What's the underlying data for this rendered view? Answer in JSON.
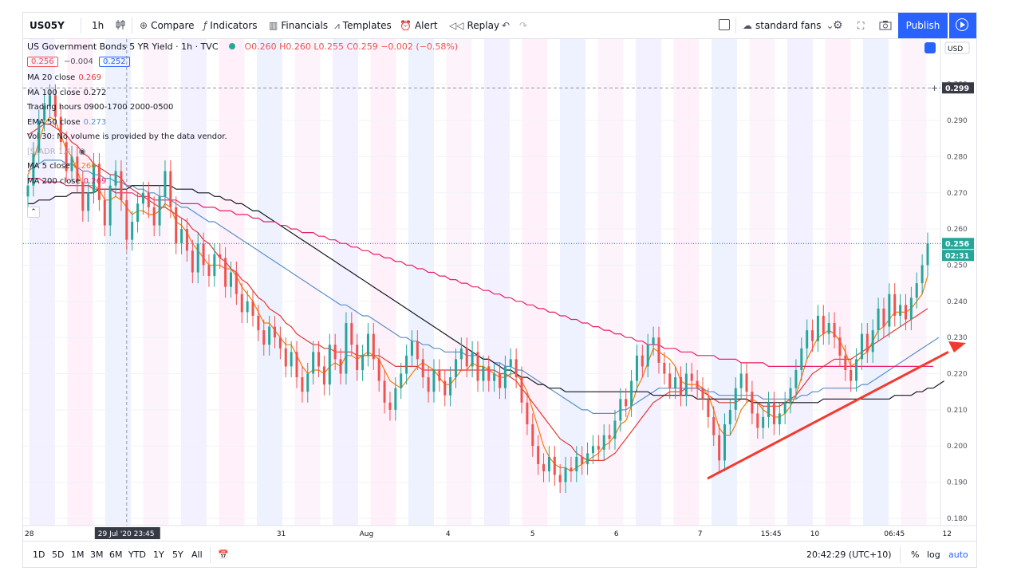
{
  "toolbar": {
    "symbol": "US05Y",
    "interval": "1h",
    "compare_label": "Compare",
    "indicators_label": "Indicators",
    "financials_label": "Financials",
    "templates_label": "Templates",
    "alert_label": "Alert",
    "replay_label": "Replay",
    "layout_name": "standard fans",
    "publish_label": "Publish"
  },
  "legend": {
    "title": "US Government Bonds 5 YR Yield · 1h · TVC",
    "ohlc": "O0.260 H0.260 L0.255 C0.259 −0.002 (−0.58%)",
    "bid": "0.256",
    "spread": "−0.004",
    "ask": "0.252",
    "rows": [
      {
        "label": "MA 20 close",
        "value": "0.269",
        "color": "#e53935"
      },
      {
        "label": "MA 100 close",
        "value": "0.272",
        "color": "#131722"
      },
      {
        "label": "Trading hours 0900-1700 2000-0500",
        "value": "",
        "color": "#131722"
      },
      {
        "label": "EMA 50 close",
        "value": "0.273",
        "color": "#5b8fc8"
      },
      {
        "label": "Vol 30: No volume is provided by the data vendor.",
        "value": "",
        "color": "#131722"
      },
      {
        "label": "[S]ADR 1.4",
        "value": "",
        "color": "#b2b5be"
      },
      {
        "label": "MA 5 close",
        "value": "0.266",
        "color": "#f57c00"
      },
      {
        "label": "MA 200 close",
        "value": "0.269",
        "color": "#e91e63"
      }
    ]
  },
  "price_scale": {
    "currency": "USD",
    "crosshair_price": "0.299",
    "last_price": "0.256",
    "countdown": "02:31"
  },
  "time_scale": {
    "crosshair_time": "29 Jul '20  23:45"
  },
  "bottom": {
    "ranges": [
      "1D",
      "5D",
      "1M",
      "3M",
      "6M",
      "YTD",
      "1Y",
      "5Y",
      "All"
    ],
    "clock": "20:42:29 (UTC+10)",
    "percent_label": "%",
    "log_label": "log",
    "auto_label": "auto"
  },
  "colors": {
    "up": "#26a69a",
    "down": "#ef5350",
    "accent": "#2962ff",
    "arrow": "#f23a2d"
  },
  "chart_data": {
    "type": "candlestick",
    "title": "US Government Bonds 5 YR Yield · 1h · TVC",
    "y_ticks": [
      0.18,
      0.19,
      0.2,
      0.21,
      0.22,
      0.23,
      0.24,
      0.25,
      0.26,
      0.27,
      0.28,
      0.29,
      0.3
    ],
    "x_ticks": [
      "28",
      "29",
      "29 Jul '20",
      "31",
      "Aug",
      "4",
      "5",
      "6",
      "7",
      "15:45",
      "10",
      "06:45",
      "12"
    ],
    "ylim": [
      0.178,
      0.3125
    ],
    "candles": [
      0.272,
      0.281,
      0.29,
      0.294,
      0.297,
      0.291,
      0.284,
      0.276,
      0.28,
      0.273,
      0.265,
      0.27,
      0.278,
      0.268,
      0.261,
      0.272,
      0.276,
      0.268,
      0.257,
      0.262,
      0.267,
      0.27,
      0.266,
      0.261,
      0.269,
      0.276,
      0.266,
      0.256,
      0.26,
      0.254,
      0.248,
      0.256,
      0.25,
      0.247,
      0.253,
      0.252,
      0.244,
      0.248,
      0.242,
      0.237,
      0.24,
      0.236,
      0.232,
      0.228,
      0.233,
      0.23,
      0.227,
      0.222,
      0.226,
      0.219,
      0.215,
      0.22,
      0.226,
      0.222,
      0.217,
      0.228,
      0.224,
      0.22,
      0.234,
      0.228,
      0.221,
      0.225,
      0.231,
      0.224,
      0.218,
      0.212,
      0.21,
      0.216,
      0.22,
      0.225,
      0.229,
      0.224,
      0.219,
      0.215,
      0.221,
      0.218,
      0.214,
      0.219,
      0.224,
      0.227,
      0.222,
      0.226,
      0.218,
      0.222,
      0.218,
      0.22,
      0.216,
      0.222,
      0.224,
      0.219,
      0.212,
      0.206,
      0.2,
      0.195,
      0.193,
      0.197,
      0.192,
      0.19,
      0.194,
      0.193,
      0.197,
      0.195,
      0.198,
      0.2,
      0.199,
      0.203,
      0.202,
      0.207,
      0.213,
      0.211,
      0.218,
      0.225,
      0.222,
      0.228,
      0.23,
      0.223,
      0.22,
      0.216,
      0.219,
      0.214,
      0.22,
      0.218,
      0.216,
      0.213,
      0.208,
      0.203,
      0.196,
      0.206,
      0.21,
      0.216,
      0.22,
      0.215,
      0.209,
      0.205,
      0.208,
      0.212,
      0.206,
      0.209,
      0.212,
      0.216,
      0.221,
      0.227,
      0.232,
      0.229,
      0.236,
      0.231,
      0.234,
      0.23,
      0.225,
      0.221,
      0.218,
      0.224,
      0.231,
      0.226,
      0.232,
      0.238,
      0.233,
      0.242,
      0.236,
      0.239,
      0.235,
      0.241,
      0.245,
      0.25,
      0.256
    ],
    "series": [
      {
        "name": "MA 5 close",
        "color": "#f57c00",
        "values": [
          0.275,
          0.279,
          0.284,
          0.289,
          0.291,
          0.29,
          0.286,
          0.282,
          0.28,
          0.276,
          0.272,
          0.272,
          0.272,
          0.271,
          0.268,
          0.268,
          0.269,
          0.268,
          0.266,
          0.264,
          0.265,
          0.265,
          0.264,
          0.264,
          0.265,
          0.267,
          0.266,
          0.262,
          0.261,
          0.259,
          0.256,
          0.254,
          0.252,
          0.25,
          0.25,
          0.25,
          0.249,
          0.249,
          0.247,
          0.244,
          0.242,
          0.24,
          0.237,
          0.234,
          0.234,
          0.232,
          0.23,
          0.228,
          0.228,
          0.225,
          0.222,
          0.22,
          0.221,
          0.221,
          0.22,
          0.222,
          0.223,
          0.222,
          0.225,
          0.225,
          0.224,
          0.225,
          0.226,
          0.225,
          0.224,
          0.221,
          0.218,
          0.217,
          0.216,
          0.218,
          0.22,
          0.222,
          0.223,
          0.222,
          0.221,
          0.219,
          0.217,
          0.217,
          0.219,
          0.221,
          0.221,
          0.223,
          0.222,
          0.222,
          0.221,
          0.22,
          0.219,
          0.219,
          0.22,
          0.22,
          0.218,
          0.215,
          0.21,
          0.205,
          0.2,
          0.197,
          0.195,
          0.194,
          0.194,
          0.193,
          0.194,
          0.195,
          0.196,
          0.197,
          0.198,
          0.2,
          0.201,
          0.203,
          0.206,
          0.207,
          0.211,
          0.216,
          0.219,
          0.223,
          0.227,
          0.226,
          0.225,
          0.224,
          0.222,
          0.218,
          0.217,
          0.217,
          0.217,
          0.216,
          0.214,
          0.21,
          0.205,
          0.203,
          0.203,
          0.206,
          0.21,
          0.212,
          0.213,
          0.212,
          0.21,
          0.209,
          0.208,
          0.208,
          0.209,
          0.211,
          0.214,
          0.219,
          0.224,
          0.227,
          0.23,
          0.231,
          0.232,
          0.231,
          0.229,
          0.226,
          0.222,
          0.223,
          0.225,
          0.226,
          0.229,
          0.232,
          0.233,
          0.235,
          0.237,
          0.237,
          0.237,
          0.238,
          0.24,
          0.242,
          0.247
        ]
      },
      {
        "name": "MA 20 close",
        "color": "#e53935",
        "values": [
          0.286,
          0.287,
          0.288,
          0.289,
          0.289,
          0.288,
          0.287,
          0.286,
          0.284,
          0.283,
          0.281,
          0.28,
          0.278,
          0.277,
          0.276,
          0.275,
          0.275,
          0.274,
          0.272,
          0.271,
          0.27,
          0.269,
          0.268,
          0.267,
          0.266,
          0.266,
          0.265,
          0.264,
          0.263,
          0.262,
          0.26,
          0.259,
          0.257,
          0.256,
          0.254,
          0.252,
          0.251,
          0.249,
          0.248,
          0.246,
          0.245,
          0.243,
          0.241,
          0.24,
          0.238,
          0.237,
          0.236,
          0.234,
          0.233,
          0.231,
          0.23,
          0.229,
          0.228,
          0.228,
          0.227,
          0.227,
          0.226,
          0.226,
          0.226,
          0.226,
          0.225,
          0.225,
          0.225,
          0.225,
          0.225,
          0.224,
          0.223,
          0.222,
          0.222,
          0.222,
          0.222,
          0.222,
          0.221,
          0.221,
          0.221,
          0.221,
          0.221,
          0.221,
          0.221,
          0.221,
          0.221,
          0.221,
          0.221,
          0.221,
          0.221,
          0.221,
          0.22,
          0.22,
          0.219,
          0.218,
          0.216,
          0.214,
          0.212,
          0.21,
          0.208,
          0.206,
          0.204,
          0.202,
          0.201,
          0.2,
          0.198,
          0.197,
          0.196,
          0.196,
          0.196,
          0.196,
          0.197,
          0.198,
          0.2,
          0.202,
          0.204,
          0.206,
          0.208,
          0.21,
          0.212,
          0.213,
          0.214,
          0.215,
          0.215,
          0.215,
          0.216,
          0.216,
          0.216,
          0.215,
          0.214,
          0.213,
          0.212,
          0.212,
          0.212,
          0.212,
          0.213,
          0.213,
          0.212,
          0.212,
          0.211,
          0.211,
          0.211,
          0.211,
          0.212,
          0.213,
          0.214,
          0.216,
          0.218,
          0.22,
          0.221,
          0.222,
          0.223,
          0.224,
          0.224,
          0.224,
          0.224,
          0.225,
          0.226,
          0.227,
          0.228,
          0.229,
          0.23,
          0.231,
          0.232,
          0.233,
          0.234,
          0.235,
          0.236,
          0.237,
          0.238
        ]
      },
      {
        "name": "EMA 50 close",
        "color": "#5b8fc8",
        "values": [
          0.276,
          0.277,
          0.278,
          0.279,
          0.279,
          0.279,
          0.279,
          0.278,
          0.278,
          0.277,
          0.276,
          0.276,
          0.275,
          0.275,
          0.274,
          0.274,
          0.273,
          0.273,
          0.272,
          0.272,
          0.271,
          0.271,
          0.27,
          0.27,
          0.269,
          0.269,
          0.268,
          0.267,
          0.266,
          0.266,
          0.265,
          0.264,
          0.263,
          0.262,
          0.262,
          0.261,
          0.26,
          0.259,
          0.258,
          0.257,
          0.256,
          0.255,
          0.254,
          0.253,
          0.252,
          0.251,
          0.25,
          0.249,
          0.248,
          0.247,
          0.246,
          0.245,
          0.244,
          0.243,
          0.242,
          0.241,
          0.24,
          0.239,
          0.239,
          0.238,
          0.237,
          0.236,
          0.236,
          0.235,
          0.234,
          0.233,
          0.232,
          0.231,
          0.23,
          0.23,
          0.229,
          0.229,
          0.228,
          0.228,
          0.227,
          0.227,
          0.226,
          0.226,
          0.226,
          0.226,
          0.225,
          0.225,
          0.225,
          0.224,
          0.224,
          0.223,
          0.223,
          0.222,
          0.222,
          0.221,
          0.221,
          0.22,
          0.219,
          0.218,
          0.217,
          0.216,
          0.215,
          0.214,
          0.213,
          0.212,
          0.211,
          0.21,
          0.21,
          0.209,
          0.209,
          0.209,
          0.209,
          0.209,
          0.21,
          0.21,
          0.211,
          0.212,
          0.213,
          0.214,
          0.215,
          0.216,
          0.216,
          0.216,
          0.216,
          0.216,
          0.216,
          0.216,
          0.216,
          0.216,
          0.215,
          0.215,
          0.214,
          0.214,
          0.214,
          0.214,
          0.214,
          0.214,
          0.214,
          0.214,
          0.213,
          0.213,
          0.213,
          0.213,
          0.213,
          0.213,
          0.213,
          0.214,
          0.214,
          0.215,
          0.215,
          0.216,
          0.216,
          0.216,
          0.216,
          0.216,
          0.216,
          0.216,
          0.217,
          0.217,
          0.218,
          0.219,
          0.22,
          0.221,
          0.222,
          0.223,
          0.224,
          0.225,
          0.226,
          0.227,
          0.228,
          0.229,
          0.23
        ]
      },
      {
        "name": "MA 100 close",
        "color": "#131722",
        "values": [
          0.267,
          0.267,
          0.268,
          0.268,
          0.268,
          0.269,
          0.269,
          0.269,
          0.27,
          0.27,
          0.27,
          0.27,
          0.27,
          0.271,
          0.271,
          0.271,
          0.271,
          0.271,
          0.271,
          0.272,
          0.272,
          0.272,
          0.272,
          0.272,
          0.272,
          0.272,
          0.272,
          0.271,
          0.271,
          0.271,
          0.271,
          0.27,
          0.27,
          0.27,
          0.269,
          0.269,
          0.268,
          0.268,
          0.267,
          0.267,
          0.266,
          0.265,
          0.265,
          0.264,
          0.263,
          0.262,
          0.261,
          0.26,
          0.259,
          0.258,
          0.257,
          0.256,
          0.255,
          0.254,
          0.253,
          0.252,
          0.251,
          0.25,
          0.249,
          0.248,
          0.247,
          0.246,
          0.245,
          0.244,
          0.243,
          0.242,
          0.241,
          0.24,
          0.239,
          0.238,
          0.237,
          0.236,
          0.235,
          0.234,
          0.233,
          0.232,
          0.231,
          0.23,
          0.229,
          0.228,
          0.227,
          0.226,
          0.225,
          0.224,
          0.224,
          0.223,
          0.222,
          0.221,
          0.221,
          0.22,
          0.219,
          0.219,
          0.218,
          0.217,
          0.217,
          0.216,
          0.216,
          0.216,
          0.215,
          0.215,
          0.215,
          0.215,
          0.215,
          0.215,
          0.215,
          0.215,
          0.215,
          0.215,
          0.215,
          0.215,
          0.215,
          0.215,
          0.215,
          0.215,
          0.214,
          0.214,
          0.214,
          0.214,
          0.214,
          0.214,
          0.214,
          0.214,
          0.213,
          0.213,
          0.213,
          0.213,
          0.213,
          0.213,
          0.213,
          0.213,
          0.213,
          0.213,
          0.212,
          0.212,
          0.212,
          0.212,
          0.212,
          0.212,
          0.212,
          0.212,
          0.212,
          0.212,
          0.212,
          0.212,
          0.212,
          0.213,
          0.213,
          0.213,
          0.213,
          0.213,
          0.213,
          0.213,
          0.213,
          0.213,
          0.213,
          0.213,
          0.213,
          0.213,
          0.214,
          0.214,
          0.214,
          0.214,
          0.215,
          0.215,
          0.216,
          0.216,
          0.217,
          0.218
        ]
      },
      {
        "name": "MA 200 close",
        "color": "#e91e63",
        "values": [
          0.274,
          0.274,
          0.274,
          0.273,
          0.273,
          0.273,
          0.273,
          0.272,
          0.272,
          0.272,
          0.272,
          0.272,
          0.271,
          0.271,
          0.271,
          0.271,
          0.27,
          0.27,
          0.27,
          0.27,
          0.269,
          0.269,
          0.269,
          0.268,
          0.268,
          0.268,
          0.268,
          0.268,
          0.267,
          0.267,
          0.267,
          0.267,
          0.266,
          0.266,
          0.266,
          0.265,
          0.265,
          0.265,
          0.264,
          0.264,
          0.264,
          0.263,
          0.263,
          0.262,
          0.262,
          0.262,
          0.261,
          0.261,
          0.26,
          0.26,
          0.259,
          0.259,
          0.259,
          0.258,
          0.258,
          0.257,
          0.257,
          0.256,
          0.256,
          0.255,
          0.255,
          0.254,
          0.254,
          0.253,
          0.253,
          0.252,
          0.252,
          0.251,
          0.251,
          0.25,
          0.25,
          0.249,
          0.249,
          0.248,
          0.248,
          0.247,
          0.247,
          0.246,
          0.246,
          0.245,
          0.245,
          0.244,
          0.244,
          0.243,
          0.243,
          0.242,
          0.242,
          0.241,
          0.241,
          0.24,
          0.24,
          0.239,
          0.239,
          0.238,
          0.238,
          0.237,
          0.237,
          0.236,
          0.236,
          0.235,
          0.235,
          0.234,
          0.234,
          0.233,
          0.233,
          0.232,
          0.232,
          0.231,
          0.231,
          0.23,
          0.23,
          0.229,
          0.229,
          0.228,
          0.228,
          0.228,
          0.227,
          0.227,
          0.227,
          0.226,
          0.226,
          0.226,
          0.225,
          0.225,
          0.225,
          0.225,
          0.224,
          0.224,
          0.224,
          0.224,
          0.223,
          0.223,
          0.223,
          0.223,
          0.223,
          0.222,
          0.222,
          0.222,
          0.222,
          0.222,
          0.222,
          0.222,
          0.222,
          0.222,
          0.222,
          0.222,
          0.222,
          0.222,
          0.222,
          0.222,
          0.222,
          0.222,
          0.222,
          0.222,
          0.222,
          0.222,
          0.222,
          0.222,
          0.222,
          0.222,
          0.222,
          0.222,
          0.222,
          0.222,
          0.222,
          0.222
        ]
      }
    ]
  }
}
